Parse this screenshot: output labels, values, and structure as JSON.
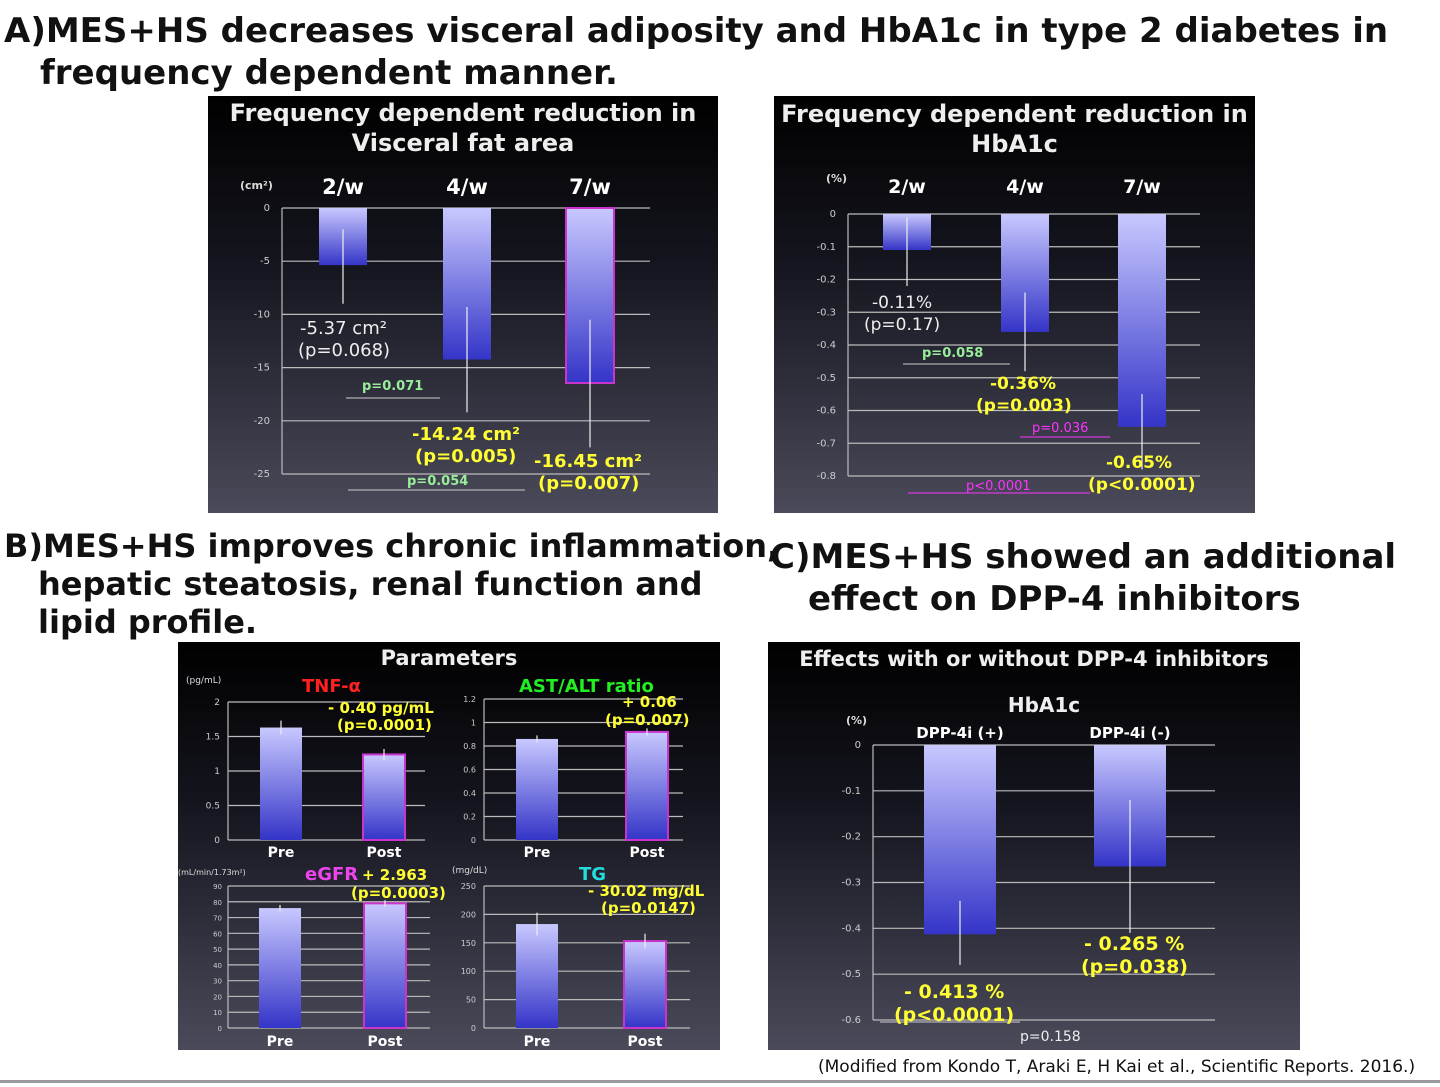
{
  "headings": {
    "a_line1": "A)MES+HS decreases visceral adiposity and HbA1c in type 2 diabetes in",
    "a_line2": "frequency dependent manner.",
    "b_line1": "B)MES+HS improves chronic inflammation,",
    "b_line2": "hepatic steatosis, renal function and",
    "b_line3": "lipid profile.",
    "c_line1": "C)MES+HS showed an additional",
    "c_line2": "effect on DPP-4 inhibitors"
  },
  "footnote": "(Modified from Kondo T, Araki E, H Kai et al., Scientific Reports. 2016.)",
  "colors": {
    "bar_top": "#c8c8ff",
    "bar_bottom": "#3434c8",
    "highlight": "#ff33ff",
    "annotation": "#ffff33",
    "green": "#99ee99"
  },
  "chart_data": [
    {
      "id": "vfa",
      "type": "bar",
      "title_line1": "Frequency dependent reduction in",
      "title_line2": "Visceral fat area",
      "ylabel": "(cm²)",
      "categories": [
        "2/w",
        "4/w",
        "7/w"
      ],
      "values": [
        -5.37,
        -14.24,
        -16.45
      ],
      "error_low": [
        -9,
        -19.2,
        -22.5
      ],
      "error_high": [
        -2,
        -9.3,
        -10.5
      ],
      "ylim": [
        -25,
        0
      ],
      "yticks": [
        0,
        -5,
        -10,
        -15,
        -20,
        -25
      ],
      "grid": true,
      "annotations": [
        {
          "label": "-5.37 cm²",
          "p": "(p=0.068)"
        },
        {
          "label": "-14.24 cm²",
          "p": "(p=0.005)"
        },
        {
          "label": "-16.45 cm²",
          "p": "(p=0.007)"
        }
      ],
      "comparisons": [
        "p=0.071",
        "p=0.054"
      ]
    },
    {
      "id": "hba1c",
      "type": "bar",
      "title_line1": "Frequency dependent reduction in",
      "title_line2": "HbA1c",
      "ylabel": "(%)",
      "categories": [
        "2/w",
        "4/w",
        "7/w"
      ],
      "values": [
        -0.11,
        -0.36,
        -0.65
      ],
      "error_low": [
        -0.22,
        -0.48,
        -0.78
      ],
      "error_high": [
        -0.01,
        -0.24,
        -0.55
      ],
      "ylim": [
        -0.8,
        0
      ],
      "yticks": [
        0,
        -0.1,
        -0.2,
        -0.3,
        -0.4,
        -0.5,
        -0.6,
        -0.7,
        -0.8
      ],
      "grid": true,
      "annotations": [
        {
          "label": "-0.11%",
          "p": "(p=0.17)"
        },
        {
          "label": "-0.36%",
          "p": "(p=0.003)"
        },
        {
          "label": "-0.65%",
          "p": "(p<0.0001)"
        }
      ],
      "comparisons": [
        "p=0.058",
        "p=0.036",
        "p<0.0001"
      ]
    },
    {
      "id": "params",
      "panel_title": "Parameters",
      "subplots": [
        {
          "id": "tnf",
          "type": "bar",
          "title": "TNF-α",
          "title_color": "#ff2020",
          "ylabel": "(pg/mL)",
          "categories": [
            "Pre",
            "Post"
          ],
          "values": [
            1.63,
            1.24
          ],
          "error": [
            0.1,
            0.08
          ],
          "ylim": [
            0,
            2
          ],
          "yticks": [
            0,
            0.5,
            1,
            1.5,
            2
          ],
          "change": "- 0.40 pg/mL",
          "p": "(p=0.0001)"
        },
        {
          "id": "astalt",
          "type": "bar",
          "title": "AST/ALT ratio",
          "title_color": "#22ee22",
          "ylabel": "",
          "categories": [
            "Pre",
            "Post"
          ],
          "values": [
            0.86,
            0.92
          ],
          "error": [
            0.03,
            0.03
          ],
          "ylim": [
            0,
            1.2
          ],
          "yticks": [
            0,
            0.2,
            0.4,
            0.6,
            0.8,
            1,
            1.2
          ],
          "change": "+ 0.06",
          "p": "(p=0.007)"
        },
        {
          "id": "egfr",
          "type": "bar",
          "title": "eGFR",
          "title_color": "#ee44ee",
          "ylabel": "(mL/min/1.73m²)",
          "categories": [
            "Pre",
            "Post"
          ],
          "values": [
            76,
            79
          ],
          "error": [
            2,
            2
          ],
          "ylim": [
            0,
            90
          ],
          "yticks": [
            0,
            10,
            20,
            30,
            40,
            50,
            60,
            70,
            80,
            90
          ],
          "change": "+ 2.963",
          "p": "(p=0.0003)"
        },
        {
          "id": "tg",
          "type": "bar",
          "title": "TG",
          "title_color": "#22dddd",
          "ylabel": "(mg/dL)",
          "categories": [
            "Pre",
            "Post"
          ],
          "values": [
            183,
            153
          ],
          "error": [
            20,
            13
          ],
          "ylim": [
            0,
            250
          ],
          "yticks": [
            0,
            50,
            100,
            150,
            200,
            250
          ],
          "change": "- 30.02 mg/dL",
          "p": "(p=0.0147)"
        }
      ]
    },
    {
      "id": "dpp4",
      "type": "bar",
      "panel_title": "Effects with or without DPP-4 inhibitors",
      "title": "HbA1c",
      "ylabel": "(%)",
      "categories": [
        "DPP-4i (+)",
        "DPP-4i (-)"
      ],
      "values": [
        -0.413,
        -0.265
      ],
      "error_low": [
        -0.48,
        -0.41
      ],
      "error_high": [
        -0.34,
        -0.12
      ],
      "ylim": [
        -0.6,
        0
      ],
      "yticks": [
        0,
        -0.1,
        -0.2,
        -0.3,
        -0.4,
        -0.5,
        -0.6
      ],
      "grid": true,
      "annotations": [
        {
          "label": "- 0.413 %",
          "p": "(p<0.0001)"
        },
        {
          "label": "- 0.265 %",
          "p": "(p=0.038)"
        }
      ],
      "comparisons": [
        "p=0.158"
      ]
    }
  ]
}
